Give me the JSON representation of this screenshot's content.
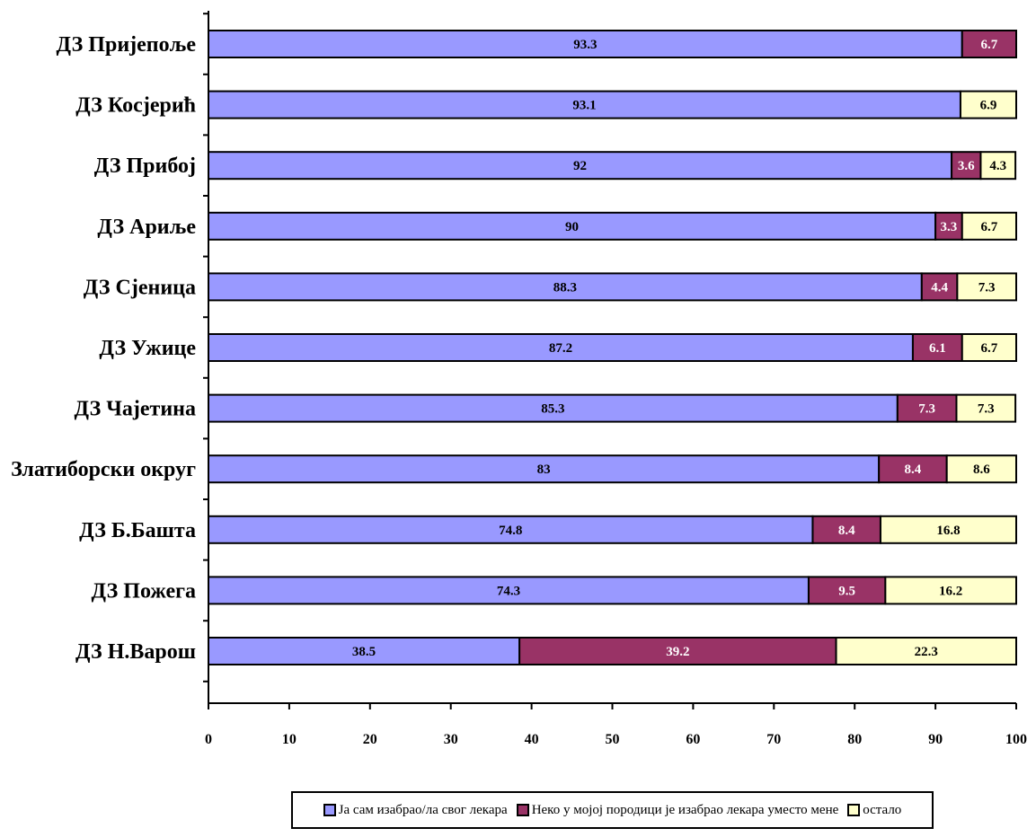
{
  "chart_data": {
    "type": "bar",
    "orientation": "horizontal",
    "stacked": true,
    "categories": [
      "ДЗ Пријепоље",
      "ДЗ Косјерић",
      "ДЗ Прибој",
      "ДЗ Ариље",
      "ДЗ Сјеница",
      "ДЗ Ужице",
      "ДЗ Чајетина",
      "Златиборски округ",
      "ДЗ Б.Башта",
      "ДЗ Пожега",
      "ДЗ Н.Варош"
    ],
    "series": [
      {
        "name": "Ја сам изабрао/ла свог  лекара",
        "color": "#9999ff",
        "values": [
          93.3,
          93.1,
          92,
          90,
          88.3,
          87.2,
          85.3,
          83,
          74.8,
          74.3,
          38.5
        ],
        "labels": [
          "93.3",
          "93.1",
          "92",
          "90",
          "88.3",
          "87.2",
          "85.3",
          "83",
          "74.8",
          "74.3",
          "38.5"
        ]
      },
      {
        "name": "Неко у мојој породици је изабрао лекара уместо мене",
        "color": "#993366",
        "values": [
          6.7,
          0,
          3.6,
          3.3,
          4.4,
          6.1,
          7.3,
          8.4,
          8.4,
          9.5,
          39.2
        ],
        "labels": [
          "6.7",
          "",
          "3.6",
          "3.3",
          "4.4",
          "6.1",
          "7.3",
          "8.4",
          "8.4",
          "9.5",
          "39.2"
        ]
      },
      {
        "name": "остало",
        "color": "#ffffcc",
        "values": [
          0,
          6.9,
          4.3,
          6.7,
          7.3,
          6.7,
          7.3,
          8.6,
          16.8,
          16.2,
          22.3
        ],
        "labels": [
          "",
          "6.9",
          "4.3",
          "6.7",
          "7.3",
          "6.7",
          "7.3",
          "8.6",
          "16.8",
          "16.2",
          "22.3"
        ]
      }
    ],
    "x_ticks": [
      "0",
      "10",
      "20",
      "30",
      "40",
      "50",
      "60",
      "70",
      "80",
      "90",
      "100"
    ],
    "xlim": [
      0,
      100
    ],
    "grid": false,
    "legend_position": "bottom"
  }
}
